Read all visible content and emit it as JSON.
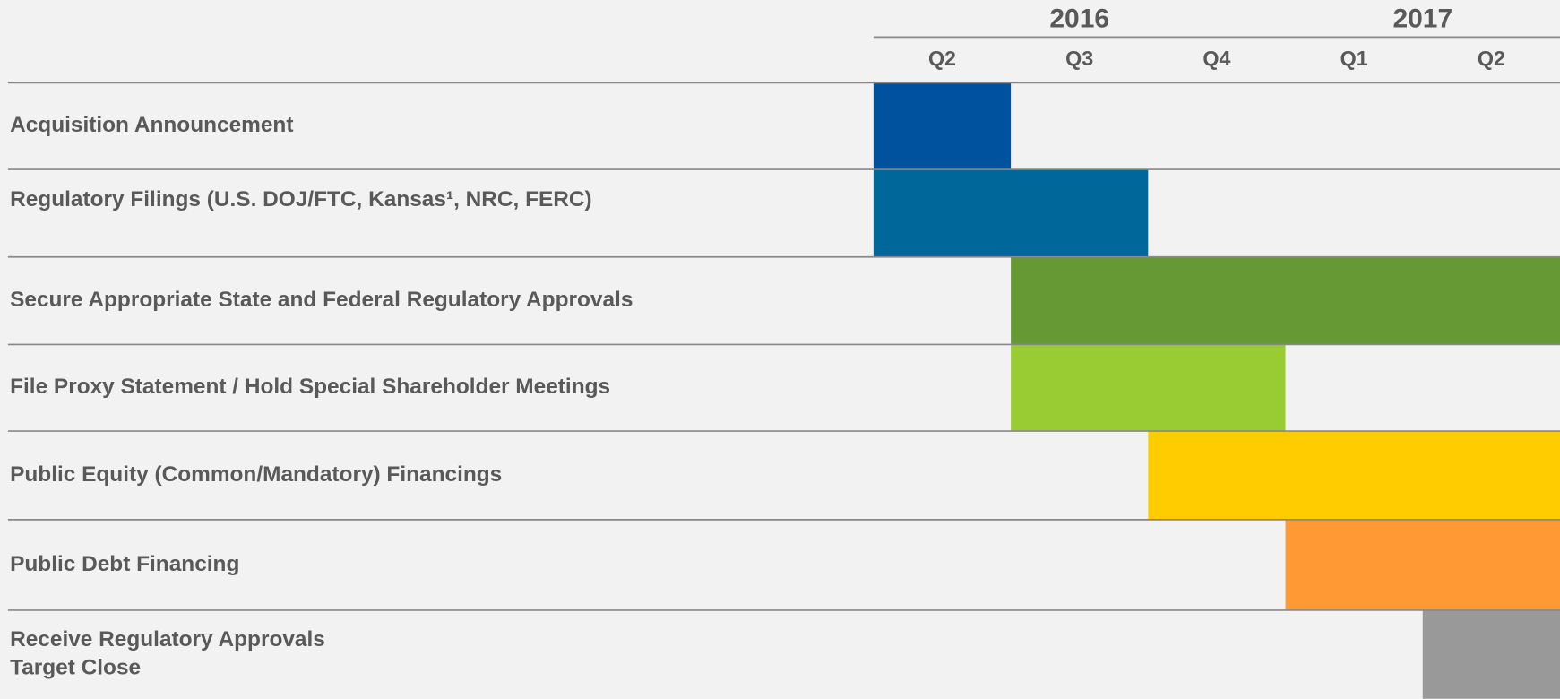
{
  "years": [
    "2016",
    "2017"
  ],
  "quarters": [
    "Q2",
    "Q3",
    "Q4",
    "Q1",
    "Q2"
  ],
  "tasks": [
    {
      "label": [
        "Acquisition Announcement"
      ],
      "start": 0,
      "end": 1,
      "color": "#00529f"
    },
    {
      "label": [
        "Regulatory Filings (U.S. DOJ/FTC, Kansas¹, NRC, FERC)"
      ],
      "start": 0,
      "end": 2,
      "color": "#00679a"
    },
    {
      "label": [
        "Secure Appropriate State and Federal Regulatory Approvals"
      ],
      "start": 1,
      "end": 5,
      "color": "#669933"
    },
    {
      "label": [
        "File Proxy Statement / Hold Special Shareholder Meetings"
      ],
      "start": 1,
      "end": 3,
      "color": "#99cc33"
    },
    {
      "label": [
        "Public Equity (Common/Mandatory) Financings"
      ],
      "start": 2,
      "end": 5,
      "color": "#ffcc00"
    },
    {
      "label": [
        "Public Debt Financing"
      ],
      "start": 3,
      "end": 5,
      "color": "#ff9933"
    },
    {
      "label": [
        "Receive Regulatory Approvals",
        "Target Close"
      ],
      "start": 4,
      "end": 5,
      "color": "#999999"
    }
  ]
}
